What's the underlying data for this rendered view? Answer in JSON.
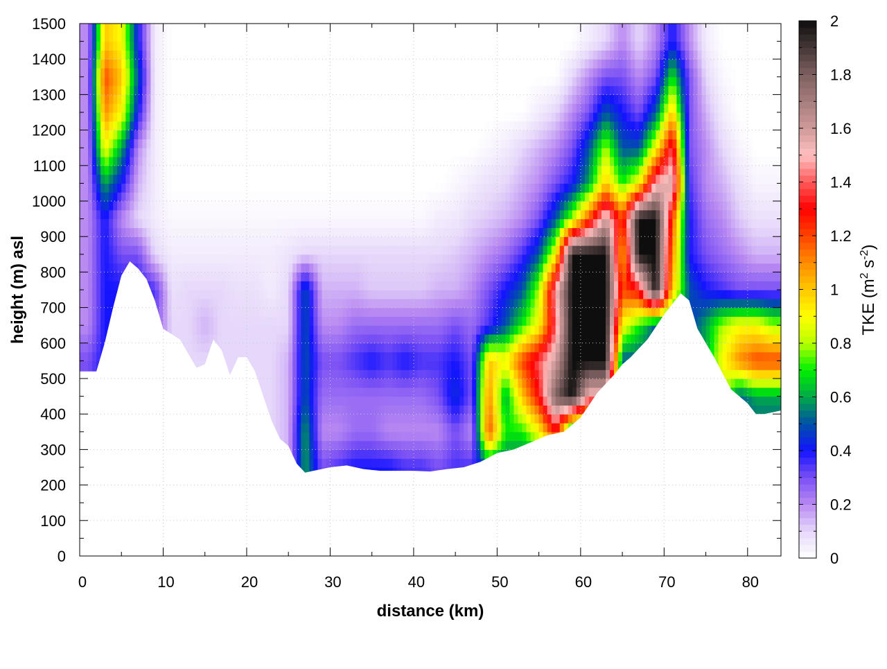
{
  "chart_data": {
    "type": "heatmap",
    "xlabel": "distance (km)",
    "ylabel": "height (m) asl",
    "xlim": [
      0,
      84
    ],
    "ylim": [
      0,
      1500
    ],
    "xticks": [
      0,
      10,
      20,
      30,
      40,
      50,
      60,
      70,
      80
    ],
    "yticks": [
      0,
      100,
      200,
      300,
      400,
      500,
      600,
      700,
      800,
      900,
      1000,
      1100,
      1200,
      1300,
      1400,
      1500
    ],
    "grid": true,
    "colorbar": {
      "label_main": "TKE (m",
      "label_sup1": "2",
      "label_mid": " s",
      "label_sup2": "-2",
      "label_end": ")",
      "range": [
        0,
        2
      ],
      "ticks": [
        "0",
        "0.2",
        "0.4",
        "0.6",
        "0.8",
        "1",
        "1.2",
        "1.4",
        "1.6",
        "1.8",
        "2"
      ],
      "colormap": [
        [
          0,
          "#ffffff"
        ],
        [
          0.1,
          "#e6d8fa"
        ],
        [
          0.2,
          "#b98af2"
        ],
        [
          0.3,
          "#7a50f5"
        ],
        [
          0.4,
          "#1414ff"
        ],
        [
          0.5,
          "#0050a8"
        ],
        [
          0.6,
          "#00a848"
        ],
        [
          0.7,
          "#00f000"
        ],
        [
          0.8,
          "#b8ff00"
        ],
        [
          0.9,
          "#ffff00"
        ],
        [
          1.0,
          "#ffc800"
        ],
        [
          1.1,
          "#ff8c00"
        ],
        [
          1.2,
          "#ff4400"
        ],
        [
          1.3,
          "#ff0000"
        ],
        [
          1.4,
          "#ff5a5a"
        ],
        [
          1.5,
          "#ffc0c0"
        ],
        [
          1.6,
          "#d09a9a"
        ],
        [
          1.8,
          "#7e6060"
        ],
        [
          2.0,
          "#0e0e0e"
        ]
      ]
    },
    "terrain": {
      "distance_km": [
        0,
        2,
        3,
        4,
        5,
        6,
        7,
        8,
        9,
        10,
        12,
        14,
        15,
        16,
        17,
        18,
        19,
        20,
        21,
        22,
        23,
        24,
        25,
        26,
        27,
        28,
        30,
        32,
        34,
        36,
        40,
        42,
        44,
        46,
        48,
        50,
        52,
        54,
        56,
        58,
        60,
        62,
        64,
        65,
        66,
        68,
        70,
        72,
        73,
        74,
        76,
        78,
        80,
        81,
        82,
        84
      ],
      "height_m": [
        520,
        520,
        600,
        700,
        790,
        830,
        810,
        780,
        720,
        640,
        610,
        530,
        540,
        610,
        580,
        510,
        560,
        560,
        520,
        450,
        380,
        330,
        310,
        260,
        235,
        240,
        250,
        255,
        245,
        240,
        240,
        238,
        245,
        250,
        265,
        290,
        300,
        320,
        340,
        350,
        390,
        460,
        510,
        540,
        560,
        610,
        680,
        740,
        720,
        640,
        560,
        470,
        430,
        400,
        400,
        410
      ]
    },
    "grid_x_km": [
      1,
      3,
      5,
      7,
      9,
      11,
      13,
      15,
      17,
      19,
      21,
      23,
      25,
      27,
      29,
      31,
      33,
      35,
      37,
      39,
      41,
      43,
      45,
      47,
      49,
      51,
      53,
      55,
      57,
      59,
      61,
      63,
      65,
      67,
      69,
      71,
      73,
      75,
      77,
      79,
      81,
      83
    ],
    "grid_z_m": [
      1450,
      1350,
      1250,
      1150,
      1050,
      950,
      850,
      750,
      650,
      550,
      450,
      350,
      250
    ],
    "tke": [
      [
        0.2,
        1.0,
        0.9,
        0.4,
        0.05,
        0,
        0,
        0,
        0,
        0,
        0,
        0,
        0,
        0,
        0,
        0,
        0,
        0,
        0,
        0,
        0,
        0,
        0,
        0,
        0,
        0,
        0,
        0,
        0,
        0,
        0.05,
        0.1,
        0.2,
        0.1,
        0.2,
        0.4,
        0.2,
        0.05,
        0,
        0,
        0,
        0
      ],
      [
        0.2,
        1.2,
        1.0,
        0.5,
        0.05,
        0,
        0,
        0,
        0,
        0,
        0,
        0,
        0,
        0,
        0,
        0,
        0,
        0,
        0,
        0,
        0,
        0,
        0,
        0,
        0,
        0,
        0,
        0,
        0,
        0.1,
        0.2,
        0.3,
        0.3,
        0.2,
        0.3,
        0.7,
        0.3,
        0.1,
        0.02,
        0,
        0,
        0
      ],
      [
        0.2,
        1.1,
        0.9,
        0.4,
        0.05,
        0,
        0,
        0,
        0,
        0,
        0,
        0,
        0,
        0,
        0,
        0,
        0,
        0,
        0,
        0,
        0,
        0,
        0,
        0,
        0,
        0,
        0,
        0.05,
        0.1,
        0.2,
        0.3,
        0.5,
        0.4,
        0.3,
        0.5,
        1.0,
        0.3,
        0.15,
        0.05,
        0,
        0,
        0
      ],
      [
        0.2,
        0.9,
        0.6,
        0.2,
        0.05,
        0,
        0,
        0,
        0,
        0,
        0,
        0,
        0,
        0,
        0,
        0,
        0,
        0,
        0,
        0,
        0,
        0,
        0,
        0,
        0.02,
        0.05,
        0.1,
        0.15,
        0.2,
        0.3,
        0.5,
        0.8,
        0.5,
        0.5,
        0.9,
        1.4,
        0.3,
        0.2,
        0.1,
        0.03,
        0,
        0
      ],
      [
        0.2,
        0.6,
        0.4,
        0.15,
        0.05,
        0,
        0,
        0,
        0,
        0,
        0,
        0,
        0,
        0,
        0,
        0,
        0,
        0,
        0,
        0,
        0,
        0,
        0.02,
        0.05,
        0.08,
        0.1,
        0.15,
        0.2,
        0.3,
        0.4,
        0.6,
        1.0,
        0.7,
        0.9,
        1.5,
        1.6,
        0.35,
        0.2,
        0.15,
        0.08,
        0.03,
        0.03
      ],
      [
        0.2,
        0.4,
        0.2,
        0.1,
        0.05,
        0.02,
        0.02,
        0.02,
        0.02,
        0.02,
        0.02,
        0.02,
        0.02,
        0.02,
        0.02,
        0.02,
        0.02,
        0.02,
        0.02,
        0.02,
        0.02,
        0.05,
        0.06,
        0.1,
        0.12,
        0.15,
        0.2,
        0.3,
        0.5,
        0.8,
        1.2,
        1.6,
        1.2,
        2,
        2,
        1.2,
        0.4,
        0.25,
        0.2,
        0.12,
        0.08,
        0.08
      ],
      [
        0.2,
        0.4,
        0.3,
        0.3,
        0.1,
        0.05,
        0.05,
        0.05,
        0.05,
        0.05,
        0.05,
        0.05,
        0.07,
        0.1,
        0.1,
        0.1,
        0.1,
        0.1,
        0.1,
        0.1,
        0.1,
        0.1,
        0.12,
        0.15,
        0.2,
        0.25,
        0.35,
        0.5,
        0.9,
        2,
        2,
        2,
        1.0,
        2,
        2,
        1.1,
        0.4,
        0.3,
        0.25,
        0.2,
        0.15,
        0.15
      ],
      [
        0.2,
        0.4,
        0.4,
        0.4,
        0.35,
        0.08,
        0.1,
        0.1,
        0.1,
        0.08,
        0.08,
        0.05,
        0.1,
        0.5,
        0.15,
        0.15,
        0.15,
        0.12,
        0.12,
        0.12,
        0.12,
        0.15,
        0.15,
        0.2,
        0.3,
        0.4,
        0.5,
        0.8,
        1.5,
        2,
        2,
        2,
        1.2,
        1.3,
        2,
        1.0,
        0.5,
        0.4,
        0.35,
        0.3,
        0.3,
        0.3
      ],
      [
        0.2,
        0.4,
        0.4,
        0.4,
        0.3,
        0.1,
        0.1,
        0.15,
        0.1,
        0.1,
        0.1,
        0.1,
        0.1,
        0.5,
        0.2,
        0.2,
        0.25,
        0.25,
        0.25,
        0.25,
        0.25,
        0.25,
        0.3,
        0.25,
        0.35,
        0.5,
        0.7,
        0.9,
        1.4,
        2,
        2,
        2,
        0.9,
        0.7,
        0.5,
        0.5,
        0.45,
        0.6,
        0.8,
        0.9,
        0.9,
        0.8
      ],
      [
        0.3,
        0.4,
        0.4,
        0.4,
        0.3,
        0.1,
        0.1,
        0.1,
        0.1,
        0.1,
        0.1,
        0.1,
        0.15,
        0.5,
        0.3,
        0.3,
        0.35,
        0.4,
        0.35,
        0.4,
        0.35,
        0.35,
        0.4,
        0.3,
        1.0,
        0.9,
        1.2,
        1.4,
        1.6,
        2,
        2,
        2,
        0.5,
        0.5,
        0.5,
        0.5,
        0.5,
        0.6,
        0.9,
        1.1,
        1.2,
        1.2
      ],
      [
        0.3,
        0.4,
        0.4,
        0.4,
        0.3,
        0.1,
        0.1,
        0.1,
        0.1,
        0.1,
        0.1,
        0.1,
        0.15,
        0.5,
        0.25,
        0.25,
        0.25,
        0.25,
        0.25,
        0.25,
        0.25,
        0.3,
        0.45,
        0.3,
        1.1,
        0.6,
        1.0,
        1.3,
        1.8,
        2,
        1.5,
        1.5,
        0.5,
        0.5,
        0.5,
        0.5,
        0.5,
        0.5,
        0.8,
        0.5,
        0.6,
        0.6
      ],
      [
        0.3,
        0.4,
        0.4,
        0.4,
        0.3,
        0.1,
        0.1,
        0.1,
        0.1,
        0.1,
        0.1,
        0.1,
        0.15,
        0.6,
        0.2,
        0.2,
        0.25,
        0.25,
        0.2,
        0.2,
        0.2,
        0.2,
        0.3,
        0.2,
        1.2,
        0.7,
        0.7,
        0.9,
        1.3,
        0.5,
        0.5,
        0.5,
        0.5,
        0.5,
        0.5,
        0.5,
        0.5,
        0.5,
        0.5,
        0.5,
        0.5,
        0.5
      ],
      [
        0.3,
        0.4,
        0.4,
        0.4,
        0.3,
        0.1,
        0.1,
        0.1,
        0.1,
        0.1,
        0.1,
        0.1,
        0.15,
        0.6,
        0.3,
        0.35,
        0.4,
        0.4,
        0.4,
        0.35,
        0.35,
        0.3,
        0.35,
        0.35,
        0.5,
        0.5,
        0.5,
        0.5,
        0.5,
        0.5,
        0.5,
        0.5,
        0.5,
        0.5,
        0.5,
        0.5,
        0.5,
        0.5,
        0.5,
        0.5,
        0.5,
        0.5
      ]
    ]
  }
}
